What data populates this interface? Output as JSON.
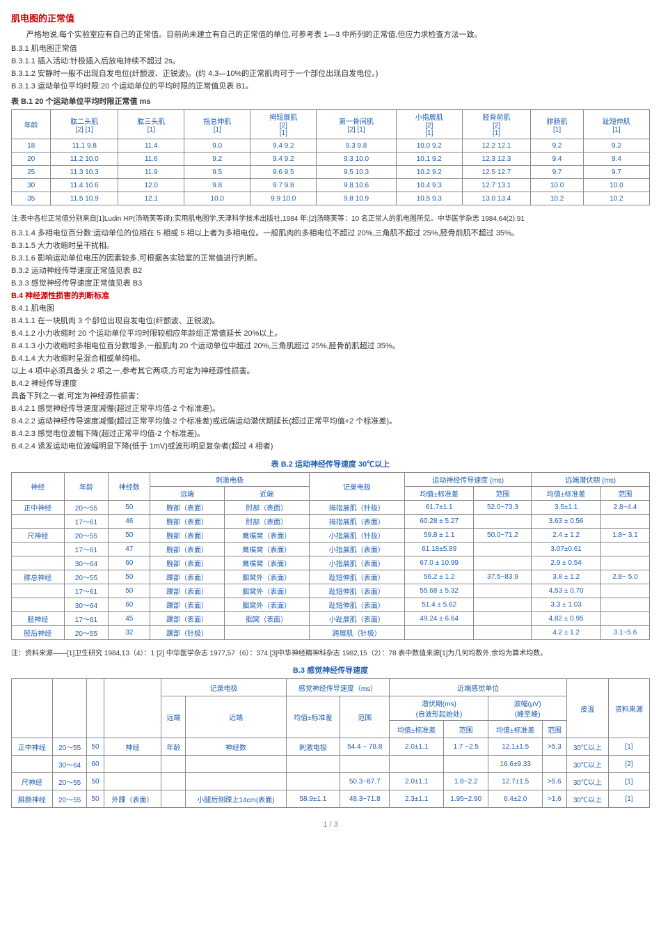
{
  "title1": "肌电图的正常值",
  "intro": "严格地说,每个实验室应有自己的正常值。目前尚未建立有自己的正常值的单位,可参考表 1—3 中所列的正常值,但应力求检查方法一致。",
  "lines_a": [
    "B.3.1 肌电图正常值",
    "B.3.1.1 插入活动:针极插入后放电持续不超过 2s。",
    "B.3.1.2 安静时一般不出现自发电位(纤颤波、正锐波)。(约 4.3—10%的正常肌肉可于一个部位出现自发电位。)",
    "B.3.1.3 运动单位平均时限:20 个运动单位的平均时限的正常值见表 B1。"
  ],
  "table1": {
    "caption": "表 B.1  20 个运动单位平均时限正常值   ms",
    "headers": [
      "年龄",
      "肱二头肌\n[2]  [1]",
      "肱三头肌\n[1]",
      "指总伸肌\n[1]",
      "拇短展肌\n[2]\n[1]",
      "第一骨间肌\n[2]  [1]",
      "小指展肌\n[2]\n[1]",
      "胫骨前肌\n[2]\n[1]",
      "腓肠肌\n[1]",
      "趾短伸肌\n[1]"
    ],
    "rows": [
      [
        "18",
        "11.1  9.8",
        "11.4",
        "9.0",
        "9.4  9.2",
        "9.3  9.8",
        "10.0  9.2",
        "12.2 12.1",
        "9.2",
        "9.2"
      ],
      [
        "20",
        "11.2  10.0",
        "11.6",
        "9.2",
        "9.4  9.2",
        "9.3  10.0",
        "10.1  9.2",
        "12.3 12.3",
        "9.4",
        "9.4"
      ],
      [
        "25",
        "11.3  10.3",
        "11.9",
        "9.5",
        "9.6  9.5",
        "9.5  10.3",
        "10.2  9.2",
        "12.5 12.7",
        "9.7",
        "9.7"
      ],
      [
        "30",
        "11.4  10.6",
        "12.0",
        "9.8",
        "9.7  9.8",
        "9.8  10.6",
        "10.4  9.3",
        "12.7 13.1",
        "10.0",
        "10.0"
      ],
      [
        "35",
        "11.5  10.9",
        "12.1",
        "10.0",
        "9.9  10.0",
        "9.8  10.9",
        "10.5  9.3",
        "13.0 13.4",
        "10.2",
        "10.2"
      ]
    ]
  },
  "note1": "注:表中各栏正常值分别来自[1]Ludin HP(汤晓芙等译):实用肌电图学,天津科学技术出版社,1984 年;[2]汤晓芙等：10 名正常人的肌电图所见。中华医学杂志 1984,64(2):91",
  "lines_b": [
    "B.3.1.4  多相电位百分数:运动单位的位相在 5 相或 5 相以上者为多相电位。一般肌肉的多相电位不超过 20%,三角肌不超过 25%,胫骨前肌不超过 35%。",
    "B.3.1.5  大力收缩时呈干扰相。",
    "B.3.1.6  影响运动单位电压的因素较多,可根据各实验室的正常值进行判断。",
    "B.3.2   运动神经传导速度正常值见表 B2",
    "B.3.3   感觉神经传导速度正常值见表 B3"
  ],
  "title2": "B.4  神经源性损害的判断标准",
  "lines_c": [
    "B.4.1   肌电图",
    "B.4.1.1  在一块肌肉 3 个部位出现自发电位(纤颤波、正锐波)。",
    "B.4.1.2  小力收缩时 20 个运动单位平均时限较相应年龄组正常值延长 20%以上。",
    "B.4.1.3  小力收缩时多相电位百分数增多,一般肌肉 20 个运动单位中超过 20%,三角肌超过 25%,胫骨前肌超过 35%。",
    "B.4.1.4  大力收缩时呈混合相或单纯相。",
    "    以上 4 项中必须具备头 2 项之一,参考其它两项,方可定为神经源性损害。",
    "B.4.2   神经传导速度",
    "    具备下列之一者,可定为神经源性损害：",
    "B.4.2.1  感觉神经传导速度减慢(超过正常平均值-2 个标准差)。",
    "B.4.2.2  运动神经传导速度减慢(超过正常平均值-2 个标准差)或远端运动潜伏期延长(超过正常平均值+2 个标准差)。",
    "B.4.2.3  感觉电位波幅下降(超过正常平均值-2 个标准差)。",
    "B.4.2.4  诱发运动电位波幅明显下降(低于 1mV)或波形明显复杂者(超过 4 相者)"
  ],
  "table2": {
    "caption": "表 B.2  运动神经传导速度 30℃以上",
    "headers_top": [
      "神经",
      "年龄",
      "神经数",
      "刺激电极",
      "记录电极",
      "运动神经传导速度 (ms)",
      "远端潜伏期 (ms)"
    ],
    "headers_sub": [
      "远端",
      "近端",
      "均值±标准差",
      "范围",
      "均值±标准差",
      "范围"
    ],
    "rows": [
      [
        "正中神经",
        "20～55",
        "50",
        "腕部（表面）",
        "肘部（表面）",
        "拇指展肌（针极）",
        "61.7±1.1",
        "52.0~73.3",
        "3.5±1.1",
        "2.8~4.4"
      ],
      [
        "",
        "17～61",
        "46",
        "腕部（表面）",
        "肘部（表面）",
        "拇指展肌（表面）",
        "60.28 ± 5.27",
        "",
        "3.63 ± 0.56",
        ""
      ],
      [
        "尺神经",
        "20～55",
        "50",
        "腕部（表面）",
        "鹰嘴窝（表面）",
        "小指展肌（针极）",
        "59.8 ± 1.1",
        "50.0~71.2",
        "2.4 ± 1.2",
        "1.8~ 3.1"
      ],
      [
        "",
        "17～61",
        "47",
        "腕部（表面）",
        "鹰嘴窝（表面）",
        "小指展肌（表面）",
        "61.18±5.89",
        "",
        "3.07±0.61",
        ""
      ],
      [
        "",
        "30～64",
        "60",
        "腕部（表面）",
        "鹰嘴窝（表面）",
        "小指展肌（表面）",
        "67.0 ± 10.99",
        "",
        "2.9 ± 0.54",
        ""
      ],
      [
        "腓总神经",
        "20～55",
        "50",
        "踝部（表面）",
        "腘窝外（表面）",
        "趾短伸肌（表面）",
        "56.2 ± 1.2",
        "37.5~83.9",
        "3.8 ± 1.2",
        "2.8~ 5.0"
      ],
      [
        "",
        "17～61",
        "50",
        "踝部（表面）",
        "腘窝外（表面）",
        "趾短伸肌（表面）",
        "55.68 ± 5.32",
        "",
        "4.53 ± 0.70",
        ""
      ],
      [
        "",
        "30～64",
        "60",
        "踝部（表面）",
        "腘窝外（表面）",
        "趾短伸肌（表面）",
        "51.4 ± 5.62",
        "",
        "3.3 ± 1.03",
        ""
      ],
      [
        "胫神经",
        "17～61",
        "45",
        "踝部（表面）",
        "腘窝（表面）",
        "小趾展肌（表面）",
        "49.24 ± 6.64",
        "",
        "4.82 ± 0.95",
        ""
      ],
      [
        "胫后神经",
        "20～55",
        "32",
        "踝部（针极）",
        "",
        "跨展肌（针极）",
        "",
        "",
        "4.2 ± 1.2",
        "3.1~5.6"
      ]
    ]
  },
  "note2": "注：资料来源——[1]卫生研究 1984,13（4）：1 [2] 中华医学杂志 1977,57（6）：374 [3]中华神经精神科杂志 1982,15（2）：78 表中数值来源[1]为几何均数外,余均为算术均数。",
  "table3": {
    "caption": "B.3  感觉神经传导速度",
    "rows": [
      [
        "正中神经",
        "20～55",
        "50",
        "神经",
        "年龄",
        "神经数",
        "刺激电极",
        "54.4 ~ 78.8",
        "2.0±1.1",
        "1.7 ~2.5",
        "12.1±1.5",
        ">5.3",
        "30℃以上",
        "[1]"
      ],
      [
        "",
        "30～64",
        "60",
        "",
        "",
        "",
        "",
        "",
        "",
        "",
        "16.6±9.33",
        "",
        "30℃以上",
        "[2]"
      ],
      [
        "尺神经",
        "20～55",
        "50",
        "",
        "",
        "",
        "",
        "50.3~87.7",
        "2.0±1.1",
        "1.8~2.2",
        "12.7±1.5",
        ">5.6",
        "30℃以上",
        "[1]"
      ],
      [
        "腓肠神经",
        "20～55",
        "50",
        "外踝（表面）",
        "",
        "小腿后侧踝上14cm(表面)",
        "58.9±1.1",
        "48.3~71.8",
        "2.3±1.1",
        "1.95~2.90",
        "6.4±2.0",
        ">1.6",
        "30℃以上",
        "[1]"
      ]
    ]
  },
  "page_num": "1 / 3"
}
